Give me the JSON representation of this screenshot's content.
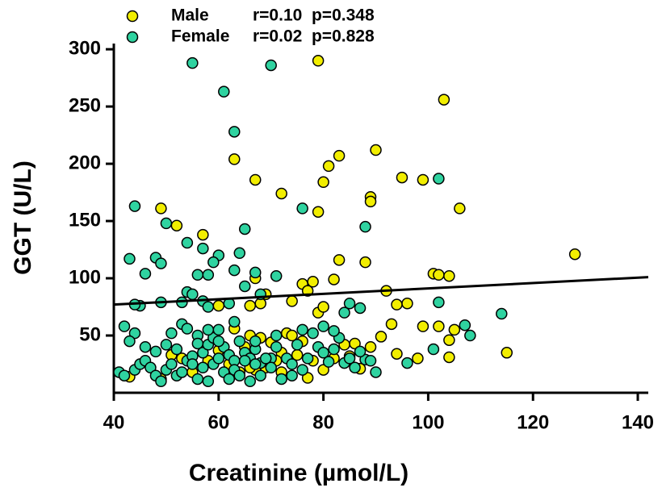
{
  "chart_data": {
    "type": "scatter",
    "xlabel": "Creatinine (µmol/L)",
    "ylabel": "GGT (U/L)",
    "xlim": [
      40,
      142
    ],
    "ylim": [
      0,
      305
    ],
    "xticks": [
      40,
      60,
      80,
      100,
      120,
      140
    ],
    "yticks": [
      50,
      100,
      150,
      200,
      250,
      300
    ],
    "series": [
      {
        "name": "Male",
        "stats": "r=0.10  p=0.348",
        "color": "#f2ee00",
        "x": [
          79,
          103,
          90,
          83,
          63,
          81,
          72,
          95,
          99,
          80,
          67,
          89,
          89,
          79,
          106,
          49,
          52,
          57,
          128,
          83,
          88,
          101,
          102,
          104,
          82,
          76,
          78,
          67,
          92,
          77,
          69,
          68,
          66,
          74,
          60,
          96,
          94,
          99,
          102,
          105,
          104,
          93,
          86,
          84,
          89,
          94,
          98,
          104,
          115,
          87,
          82,
          78,
          75,
          72,
          70,
          68,
          66,
          63,
          65,
          60,
          73,
          76,
          74,
          71,
          69,
          67,
          64,
          62,
          58,
          55,
          53,
          51,
          49,
          43,
          80,
          85,
          77,
          91,
          66,
          72,
          79,
          80
        ],
        "values": [
          290,
          256,
          212,
          207,
          204,
          198,
          174,
          188,
          186,
          184,
          186,
          171,
          167,
          158,
          161,
          161,
          146,
          138,
          121,
          116,
          114,
          104,
          103,
          102,
          99,
          95,
          97,
          100,
          89,
          89,
          86,
          78,
          76,
          80,
          76,
          78,
          77,
          58,
          58,
          55,
          46,
          60,
          43,
          42,
          40,
          34,
          30,
          31,
          35,
          21,
          30,
          28,
          33,
          35,
          44,
          48,
          50,
          56,
          40,
          37,
          52,
          45,
          50,
          28,
          22,
          20,
          18,
          25,
          28,
          18,
          30,
          33,
          12,
          14,
          20,
          32,
          13,
          49,
          22,
          18,
          70,
          75
        ]
      },
      {
        "name": "Female",
        "stats": "r=0.02  p=0.828",
        "color": "#2fd3a0",
        "x": [
          55,
          70,
          61,
          63,
          102,
          76,
          44,
          88,
          65,
          50,
          54,
          57,
          60,
          64,
          43,
          48,
          49,
          46,
          59,
          63,
          56,
          58,
          67,
          71,
          54,
          55,
          57,
          53,
          45,
          44,
          49,
          58,
          62,
          65,
          68,
          85,
          87,
          102,
          114,
          107,
          108,
          101,
          88,
          96,
          42,
          44,
          43,
          46,
          48,
          50,
          51,
          53,
          54,
          56,
          56,
          57,
          58,
          59,
          60,
          61,
          62,
          63,
          64,
          65,
          66,
          67,
          68,
          70,
          71,
          73,
          74,
          75,
          76,
          77,
          78,
          79,
          80,
          81,
          82,
          83,
          84,
          85,
          86,
          87,
          89,
          90,
          41,
          42,
          44,
          45,
          46,
          47,
          48,
          49,
          50,
          51,
          52,
          53,
          54,
          55,
          56,
          57,
          58,
          59,
          60,
          61,
          62,
          63,
          64,
          65,
          66,
          67,
          68,
          69,
          70,
          72,
          74,
          76,
          52,
          55,
          58,
          60,
          63,
          67,
          71,
          82,
          84,
          80
        ],
        "values": [
          288,
          286,
          263,
          228,
          187,
          161,
          163,
          145,
          143,
          148,
          131,
          126,
          120,
          122,
          117,
          118,
          113,
          104,
          114,
          107,
          103,
          103,
          105,
          102,
          88,
          86,
          80,
          79,
          76,
          77,
          79,
          75,
          78,
          93,
          86,
          78,
          74,
          79,
          69,
          59,
          50,
          38,
          29,
          26,
          58,
          52,
          45,
          40,
          36,
          42,
          52,
          60,
          56,
          50,
          43,
          35,
          42,
          48,
          55,
          40,
          33,
          28,
          45,
          35,
          30,
          38,
          26,
          30,
          40,
          30,
          25,
          42,
          55,
          30,
          52,
          40,
          35,
          27,
          38,
          48,
          26,
          30,
          22,
          36,
          28,
          18,
          18,
          15,
          20,
          25,
          28,
          22,
          15,
          10,
          20,
          25,
          15,
          18,
          28,
          32,
          12,
          22,
          10,
          25,
          30,
          18,
          12,
          20,
          15,
          28,
          10,
          25,
          15,
          30,
          22,
          12,
          15,
          20,
          38,
          25,
          55,
          45,
          62,
          45,
          50,
          54,
          70,
          58
        ]
      }
    ],
    "trend": {
      "x": [
        40,
        142
      ],
      "values": [
        77,
        101
      ]
    }
  }
}
